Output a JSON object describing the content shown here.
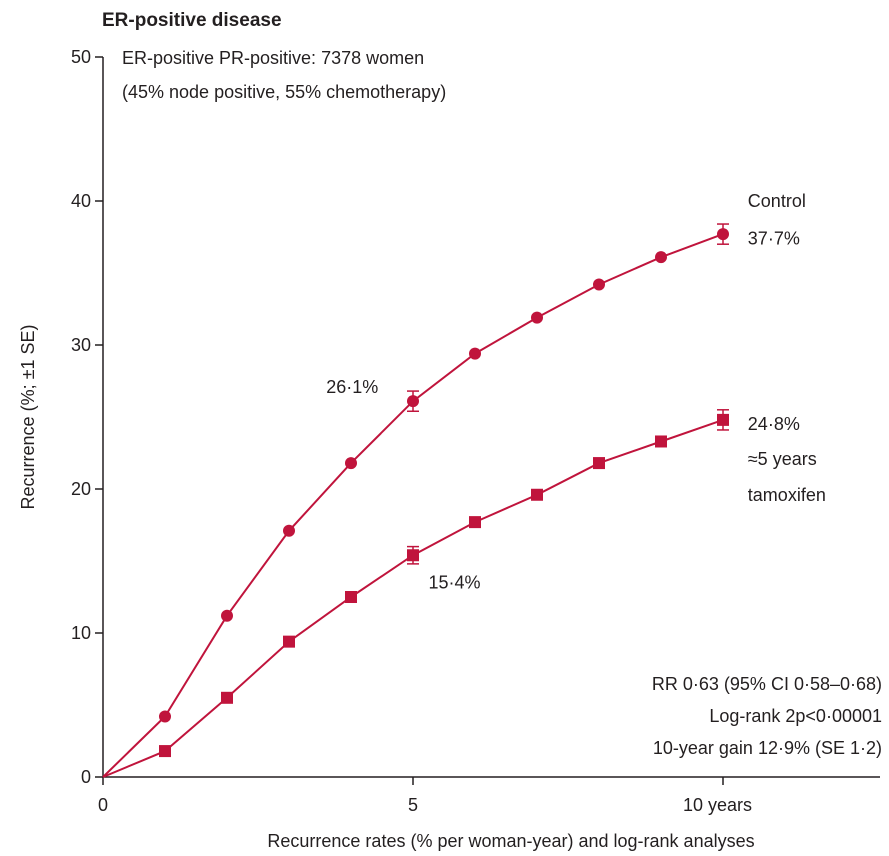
{
  "chart_data": {
    "type": "line",
    "title": "ER-positive disease",
    "subtitle_lines": [
      "ER-positive PR-positive: 7378 women",
      "(45% node positive, 55% chemotherapy)"
    ],
    "xlabel": "Recurrence rates (% per woman-year) and log-rank analyses",
    "ylabel": "Recurrence (%; ±1 SE)",
    "xlim": [
      0,
      12.5
    ],
    "ylim": [
      0,
      50
    ],
    "x_ticks": [
      {
        "value": 0,
        "label": "0"
      },
      {
        "value": 5,
        "label": "5"
      },
      {
        "value": 10,
        "label": "10 years"
      }
    ],
    "y_ticks": [
      {
        "value": 0,
        "label": "0"
      },
      {
        "value": 10,
        "label": "10"
      },
      {
        "value": 20,
        "label": "20"
      },
      {
        "value": 30,
        "label": "30"
      },
      {
        "value": 40,
        "label": "40"
      },
      {
        "value": 50,
        "label": "50"
      }
    ],
    "grid": false,
    "series": [
      {
        "name": "Control",
        "marker": "circle",
        "color": "#c0143c",
        "x": [
          0,
          1,
          2,
          3,
          4,
          5,
          6,
          7,
          8,
          9,
          10
        ],
        "y": [
          0,
          4.2,
          11.2,
          17.1,
          21.8,
          26.1,
          29.4,
          31.9,
          34.2,
          36.1,
          37.7
        ],
        "se": {
          "5": 0.7,
          "10": 0.7
        }
      },
      {
        "name": "≈5 years tamoxifen",
        "marker": "square",
        "color": "#c0143c",
        "x": [
          0,
          1,
          2,
          3,
          4,
          5,
          6,
          7,
          8,
          9,
          10
        ],
        "y": [
          0,
          1.8,
          5.5,
          9.4,
          12.5,
          15.4,
          17.7,
          19.6,
          21.8,
          23.3,
          24.8
        ],
        "se": {
          "5": 0.6,
          "10": 0.7
        }
      }
    ],
    "annotations": [
      {
        "id": "control-name",
        "text": "Control",
        "x": 10.4,
        "y": 40.0
      },
      {
        "id": "control-end",
        "text": "37·7%",
        "x": 10.4,
        "y": 37.4
      },
      {
        "id": "control-5yr",
        "text": "26·1%",
        "x": 3.6,
        "y": 27.1
      },
      {
        "id": "tamox-end",
        "text": "24·8%",
        "x": 10.4,
        "y": 24.5
      },
      {
        "id": "tamox-name-1",
        "text": "≈5 years",
        "x": 10.4,
        "y": 22.1
      },
      {
        "id": "tamox-name-2",
        "text": "tamoxifen",
        "x": 10.4,
        "y": 19.6
      },
      {
        "id": "tamox-5yr",
        "text": "15·4%",
        "x": 5.25,
        "y": 13.5
      }
    ],
    "stats_lines": [
      "RR 0·63 (95% CI 0·58–0·68)",
      "Log-rank 2p<0·00001",
      "10-year gain 12·9% (SE 1·2)"
    ]
  }
}
